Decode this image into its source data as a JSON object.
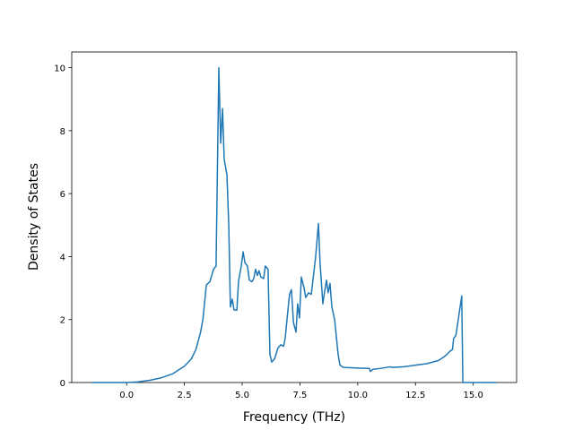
{
  "chart_data": {
    "type": "line",
    "xlabel": "Frequency (THz)",
    "ylabel": "Density of States",
    "color": "#1f77b4",
    "x": [
      -1.5,
      0,
      0.5,
      1,
      1.5,
      2,
      2.5,
      2.8,
      3,
      3.2,
      3.3,
      3.45,
      3.6,
      3.76,
      3.87,
      3.99,
      4.07,
      4.15,
      4.22,
      4.34,
      4.42,
      4.49,
      4.57,
      4.65,
      4.77,
      4.84,
      4.96,
      5.04,
      5.12,
      5.23,
      5.31,
      5.42,
      5.5,
      5.58,
      5.66,
      5.73,
      5.81,
      5.93,
      6,
      6.12,
      6.2,
      6.28,
      6.4,
      6.55,
      6.67,
      6.79,
      6.86,
      6.98,
      7.05,
      7.13,
      7.22,
      7.33,
      7.4,
      7.48,
      7.56,
      7.68,
      7.75,
      7.87,
      7.99,
      8.07,
      8.18,
      8.3,
      8.37,
      8.49,
      8.57,
      8.65,
      8.72,
      8.8,
      8.88,
      9,
      9.07,
      9.15,
      9.23,
      9.38,
      10,
      10.5,
      10.55,
      10.66,
      11,
      11.4,
      11.5,
      12,
      12.5,
      13,
      13.5,
      13.8,
      14,
      14.1,
      14.15,
      14.25,
      14.35,
      14.45,
      14.5,
      14.55,
      16
    ],
    "values": [
      0,
      0,
      0.02,
      0.07,
      0.15,
      0.28,
      0.52,
      0.75,
      1.05,
      1.6,
      2,
      3.1,
      3.2,
      3.6,
      3.7,
      10,
      7.6,
      8.7,
      7.1,
      6.6,
      5,
      2.4,
      2.65,
      2.3,
      2.3,
      3.2,
      3.7,
      4.15,
      3.8,
      3.7,
      3.25,
      3.2,
      3.3,
      3.6,
      3.4,
      3.55,
      3.35,
      3.3,
      3.7,
      3.6,
      0.9,
      0.65,
      0.75,
      1.1,
      1.2,
      1.15,
      1.4,
      2.3,
      2.8,
      2.95,
      1.9,
      1.6,
      2.5,
      2.05,
      3.35,
      3,
      2.7,
      2.85,
      2.8,
      3.3,
      4,
      5.05,
      3.8,
      2.5,
      2.9,
      3.25,
      2.85,
      3.15,
      2.4,
      2,
      1.5,
      0.9,
      0.55,
      0.48,
      0.46,
      0.45,
      0.35,
      0.42,
      0.45,
      0.5,
      0.48,
      0.5,
      0.55,
      0.6,
      0.7,
      0.85,
      1,
      1.05,
      1.4,
      1.5,
      2,
      2.5,
      2.75,
      0,
      0
    ],
    "xlim": [
      -2.375,
      16.875
    ],
    "xticks": [
      {
        "value": 0,
        "label": "0.0"
      },
      {
        "value": 2.5,
        "label": "2.5"
      },
      {
        "value": 5,
        "label": "5.0"
      },
      {
        "value": 7.5,
        "label": "7.5"
      },
      {
        "value": 10,
        "label": "10.0"
      },
      {
        "value": 12.5,
        "label": "12.5"
      },
      {
        "value": 15,
        "label": "15.0"
      }
    ],
    "ylim": [
      0,
      10.5
    ],
    "yticks": [
      0,
      2,
      4,
      6,
      8,
      10
    ]
  }
}
